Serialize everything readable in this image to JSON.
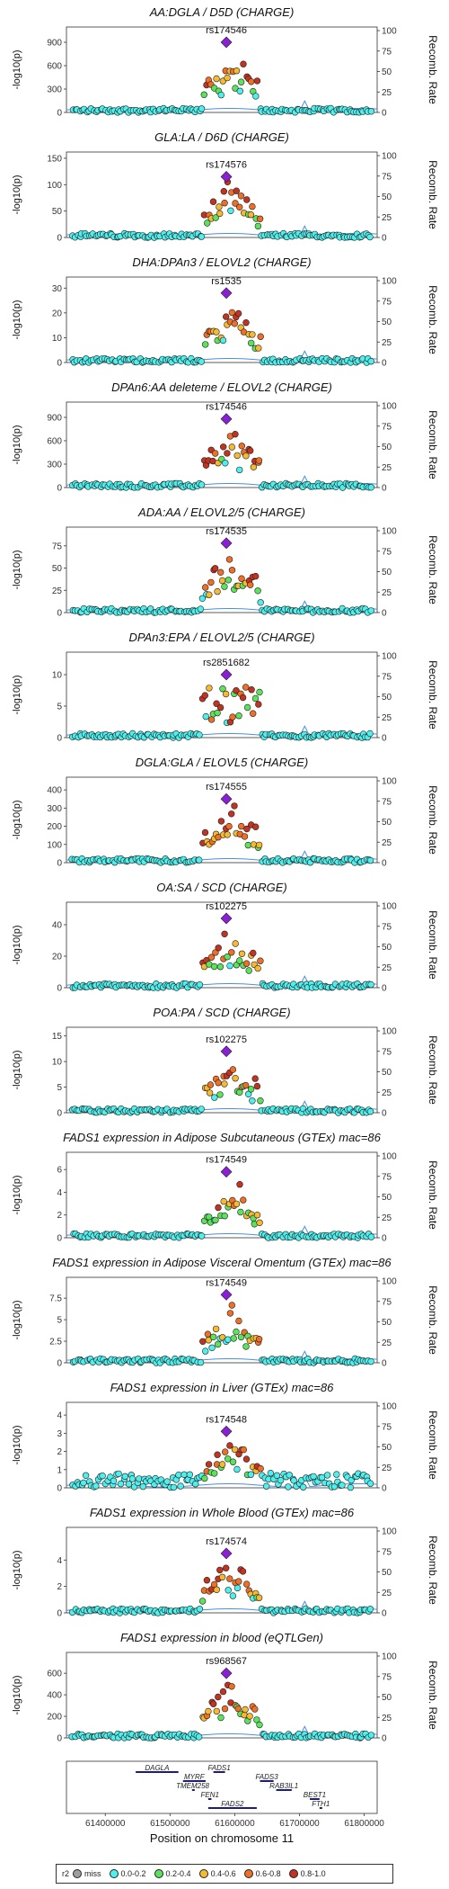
{
  "chart_data": {
    "panels": [
      {
        "title": "AA:DGLA / D5D (CHARGE)",
        "lead": "rs174546",
        "yticks": [
          0,
          300,
          600,
          900
        ],
        "ymax": 1050,
        "peak_y": 900,
        "profile": "ew"
      },
      {
        "title": "GLA:LA / D6D (CHARGE)",
        "lead": "rs174576",
        "yticks": [
          0,
          50,
          100,
          150
        ],
        "ymax": 155,
        "peak_y": 115,
        "profile": "ew"
      },
      {
        "title": "DHA:DPAn3 / ELOVL2 (CHARGE)",
        "lead": "rs1535",
        "yticks": [
          0,
          10,
          20,
          30
        ],
        "ymax": 33,
        "peak_y": 28,
        "profile": "mod"
      },
      {
        "title": "DPAn6:AA deleteme / ELOVL2 (CHARGE)",
        "lead": "rs174546",
        "yticks": [
          0,
          300,
          600,
          900
        ],
        "ymax": 1050,
        "peak_y": 880,
        "profile": "ew"
      },
      {
        "title": "ADA:AA / ELOVL2/5 (CHARGE)",
        "lead": "rs174535",
        "yticks": [
          0,
          25,
          50,
          75
        ],
        "ymax": 92,
        "peak_y": 78,
        "profile": "mod"
      },
      {
        "title": "DPAn3:EPA / ELOVL2/5 (CHARGE)",
        "lead": "rs2851682",
        "yticks": [
          0,
          5,
          10
        ],
        "ymax": 13,
        "peak_y": 10,
        "profile": "flat"
      },
      {
        "title": "DGLA:GLA / ELOVL5 (CHARGE)",
        "lead": "rs174555",
        "yticks": [
          0,
          100,
          200,
          300,
          400
        ],
        "ymax": 450,
        "peak_y": 350,
        "profile": "ew"
      },
      {
        "title": "OA:SA / SCD (CHARGE)",
        "lead": "rs102275",
        "yticks": [
          0,
          20,
          40
        ],
        "ymax": 52,
        "peak_y": 44,
        "profile": "mod"
      },
      {
        "title": "POA:PA / SCD (CHARGE)",
        "lead": "rs102275",
        "yticks": [
          0,
          5,
          10,
          15
        ],
        "ymax": 16,
        "peak_y": 12,
        "profile": "mod"
      },
      {
        "title": "FADS1 expression in Adipose Subcutaneous (GTEx) mac=86",
        "lead": "rs174549",
        "yticks": [
          0,
          2,
          4,
          6
        ],
        "ymax": 7.2,
        "peak_y": 5.8,
        "profile": "mod"
      },
      {
        "title": "FADS1 expression in Adipose Visceral Omentum (GTEx) mac=86",
        "lead": "rs174549",
        "yticks": [
          0,
          2.5,
          5,
          7.5
        ],
        "ymax": 9.5,
        "peak_y": 7.9,
        "profile": "mod"
      },
      {
        "title": "FADS1 expression in Liver (GTEx) mac=86",
        "lead": "rs174548",
        "yticks": [
          0,
          1,
          2,
          3,
          4
        ],
        "ymax": 4.5,
        "peak_y": 3.1,
        "profile": "noisy"
      },
      {
        "title": "FADS1 expression in Whole Blood (GTEx) mac=86",
        "lead": "rs174574",
        "yticks": [
          0,
          2,
          4
        ],
        "ymax": 6.2,
        "peak_y": 4.5,
        "profile": "mod"
      },
      {
        "title": "FADS1 expression in blood (eQTLGen)",
        "lead": "rs968567",
        "yticks": [
          0,
          200,
          400,
          600
        ],
        "ymax": 760,
        "peak_y": 600,
        "profile": "ew"
      }
    ],
    "ylabel": "-log10(p)",
    "y2label": "Recomb. Rate",
    "y2ticks": [
      0,
      25,
      50,
      75,
      100
    ],
    "xlabel": "Position on chromosome 11",
    "xticks": [
      61400000,
      61500000,
      61600000,
      61700000,
      61800000
    ],
    "xlim": [
      61340000,
      61820000
    ],
    "genes": [
      {
        "name": "DAGLA",
        "start": 61447000,
        "end": 61513000,
        "row": 0
      },
      {
        "name": "FADS1",
        "start": 61567000,
        "end": 61585000,
        "row": 0
      },
      {
        "name": "MYRF",
        "start": 61520000,
        "end": 61555000,
        "row": 1
      },
      {
        "name": "FADS3",
        "start": 61639000,
        "end": 61660000,
        "row": 1
      },
      {
        "name": "TMEM258",
        "start": 61534000,
        "end": 61536000,
        "row": 2
      },
      {
        "name": "RAB3IL1",
        "start": 61664000,
        "end": 61688000,
        "row": 2
      },
      {
        "name": "FEN1",
        "start": 61559000,
        "end": 61564000,
        "row": 3
      },
      {
        "name": "BEST1",
        "start": 61716000,
        "end": 61731000,
        "row": 3
      },
      {
        "name": "FADS2",
        "start": 61559000,
        "end": 61634000,
        "row": 4
      },
      {
        "name": "FTH1",
        "start": 61731000,
        "end": 61735000,
        "row": 4
      }
    ],
    "legend": {
      "title": "r2",
      "items": [
        {
          "label": "miss",
          "color": "#9e9e9e"
        },
        {
          "label": "0.0-0.2",
          "color": "#4ef0ee"
        },
        {
          "label": "0.2-0.4",
          "color": "#5be35b"
        },
        {
          "label": "0.4-0.6",
          "color": "#f7b92f"
        },
        {
          "label": "0.6-0.8",
          "color": "#ee6f25"
        },
        {
          "label": "0.8-1.0",
          "color": "#c23321"
        }
      ]
    },
    "lead_color": "#8a1fd6",
    "recomb_color": "#4a90e2"
  }
}
